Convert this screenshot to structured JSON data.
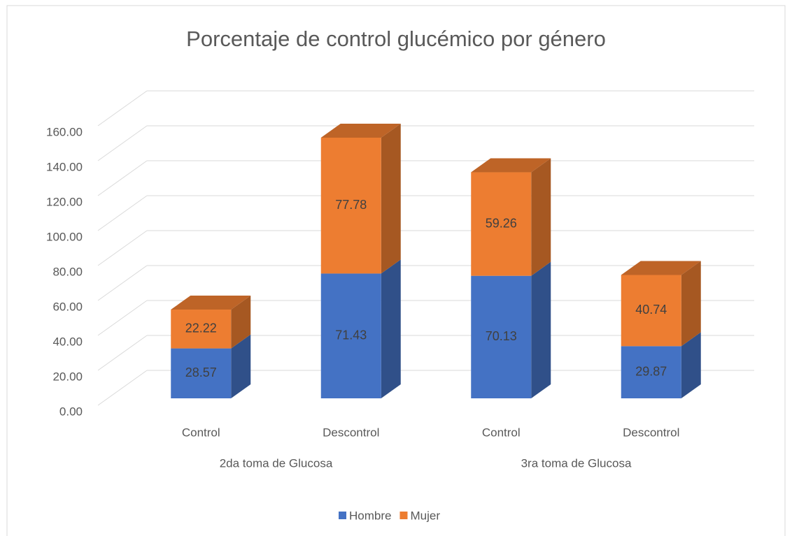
{
  "chart_data": {
    "type": "bar3d_stacked",
    "title": "Porcentaje de control glucémico por género",
    "categories": [
      "Control",
      "Descontrol",
      "Control",
      "Descontrol"
    ],
    "groups": [
      "2da toma de Glucosa",
      "3ra toma de Glucosa"
    ],
    "series": [
      {
        "name": "Hombre",
        "color": "#4472c4",
        "values": [
          28.57,
          71.43,
          70.13,
          29.87
        ]
      },
      {
        "name": "Mujer",
        "color": "#ed7d31",
        "values": [
          22.22,
          77.78,
          59.26,
          40.74
        ]
      }
    ],
    "ylim": [
      0,
      160
    ],
    "yticks": [
      {
        "value": 0,
        "label": "0.00"
      },
      {
        "value": 20,
        "label": "20.00"
      },
      {
        "value": 40,
        "label": "40.00"
      },
      {
        "value": 60,
        "label": "60.00"
      },
      {
        "value": 80,
        "label": "80.00"
      },
      {
        "value": 100,
        "label": "100.00"
      },
      {
        "value": 120,
        "label": "120.00"
      },
      {
        "value": 140,
        "label": "140.00"
      },
      {
        "value": 160,
        "label": "160.00"
      }
    ],
    "grid": true,
    "legend": "bottom"
  }
}
